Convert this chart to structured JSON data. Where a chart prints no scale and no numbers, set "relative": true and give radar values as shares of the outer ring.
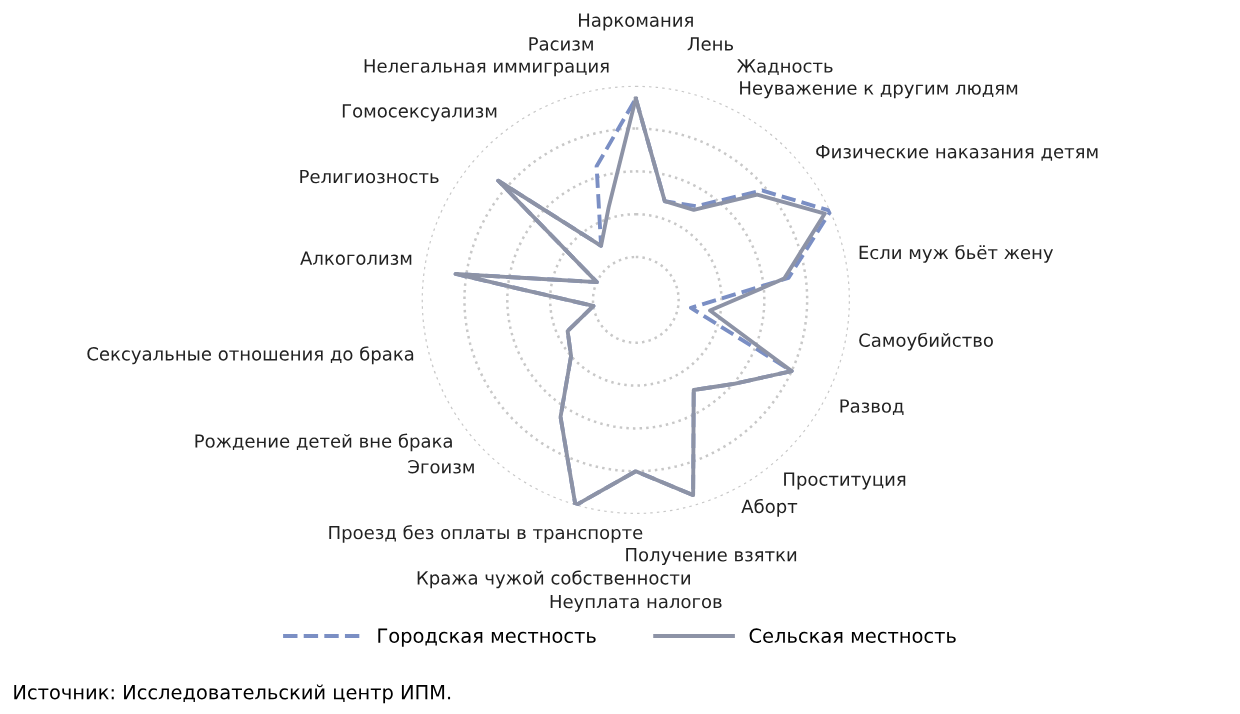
{
  "chart_data": {
    "type": "radar",
    "relative": true,
    "grid": true,
    "legend": "bottom",
    "marker": "none",
    "line_style": "solid",
    "categories": [
      "Наркомания",
      "Лень",
      "Жадность",
      "Неуважение к другим людям",
      "Физические наказания детям",
      "Если муж бьёт жену",
      "Самоубийство",
      "Развод",
      "Проституция",
      "Аборт",
      "Получение взятки",
      "Неуплата налогов",
      "Кража чужой собственности",
      "Проезд без оплаты в транспорте",
      "Эгоизм",
      "Рождение детей вне брака",
      "Сексуальные отношения до брака",
      "Алкоголизм",
      "Религиозность",
      "Гомосексуализм",
      "Нелегальная иммиграция",
      "Расизм"
    ],
    "series": [
      {
        "name": "Городская местность",
        "color": "#7b8fc4",
        "line_style": "dashed",
        "values": [
          0.94,
          0.48,
          0.52,
          0.78,
          1.0,
          0.72,
          0.26,
          0.8,
          0.6,
          0.5,
          0.95,
          0.8,
          1.0,
          0.65,
          0.4,
          0.35,
          0.2,
          0.85,
          0.2,
          0.85,
          0.3,
          0.65
        ]
      },
      {
        "name": "Сельская местность",
        "color": "#8d93a6",
        "values": [
          0.94,
          0.48,
          0.5,
          0.75,
          0.97,
          0.7,
          0.35,
          0.8,
          0.6,
          0.5,
          0.95,
          0.8,
          1.0,
          0.65,
          0.4,
          0.35,
          0.2,
          0.85,
          0.2,
          0.85,
          0.3,
          0.45
        ]
      }
    ],
    "annotations": [
      "Источник: Исследовательский центр ИПМ."
    ]
  }
}
